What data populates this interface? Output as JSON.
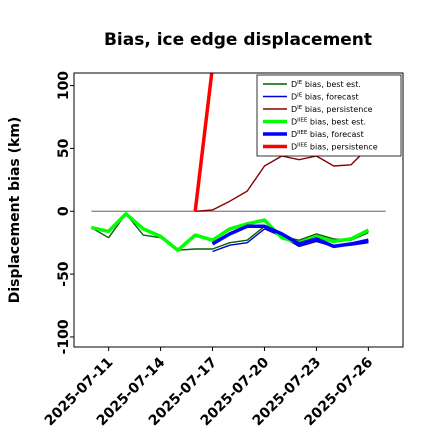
{
  "chart_data": {
    "type": "line",
    "title": "Bias, ice edge displacement",
    "ylabel": "Displacement bias (km)",
    "xlabel": "",
    "xlim": [
      "2025-07-09",
      "2025-07-28"
    ],
    "ylim": [
      -108,
      110
    ],
    "x_ticks": [
      "2025-07-11",
      "2025-07-14",
      "2025-07-17",
      "2025-07-20",
      "2025-07-23",
      "2025-07-26"
    ],
    "x_tick_highlight": "2025-07-17",
    "x_tick_colors": {
      "default": "#000000",
      "highlight": "#228b22"
    },
    "y_ticks": [
      -100,
      -50,
      0,
      50,
      100
    ],
    "grid": false,
    "zero_line": true,
    "legend_position": "top-right",
    "series": [
      {
        "name": "D^IE bias, best est.",
        "legend_main": "D",
        "legend_sup": "IE",
        "legend_rest": " bias, best est.",
        "color": "#006400",
        "width": 1.4,
        "x": [
          "2025-07-10",
          "2025-07-11",
          "2025-07-12",
          "2025-07-13",
          "2025-07-14",
          "2025-07-15",
          "2025-07-16",
          "2025-07-17",
          "2025-07-18",
          "2025-07-19",
          "2025-07-20",
          "2025-07-21",
          "2025-07-22",
          "2025-07-23",
          "2025-07-24",
          "2025-07-25",
          "2025-07-26"
        ],
        "y": [
          -13,
          -21,
          -2,
          -19,
          -21,
          -31,
          -30,
          -30,
          -25,
          -23,
          -12,
          -20,
          -23,
          -18,
          -22,
          -23,
          -17
        ]
      },
      {
        "name": "D^IE bias, forecast",
        "legend_main": "D",
        "legend_sup": "IE",
        "legend_rest": " bias, forecast",
        "color": "#0000cd",
        "width": 1.4,
        "x": [
          "2025-07-17",
          "2025-07-18",
          "2025-07-19",
          "2025-07-20",
          "2025-07-21",
          "2025-07-22",
          "2025-07-23",
          "2025-07-24",
          "2025-07-25",
          "2025-07-26"
        ],
        "y": [
          -32,
          -27,
          -25,
          -14,
          -20,
          -28,
          -24,
          -28,
          -27,
          -25
        ]
      },
      {
        "name": "D^IE bias, persistence",
        "legend_main": "D",
        "legend_sup": "IE",
        "legend_rest": " bias, persistence",
        "color": "#8b0000",
        "width": 1.4,
        "x": [
          "2025-07-16",
          "2025-07-17",
          "2025-07-18",
          "2025-07-19",
          "2025-07-20",
          "2025-07-21",
          "2025-07-22",
          "2025-07-23",
          "2025-07-24",
          "2025-07-25",
          "2025-07-26"
        ],
        "y": [
          0,
          1,
          8,
          16,
          36,
          44,
          41,
          44,
          36,
          37,
          51
        ]
      },
      {
        "name": "D^IIEE bias, best est.",
        "legend_main": "D",
        "legend_sup": "IIEE",
        "legend_rest": " bias, best est.",
        "color": "#00ff00",
        "width": 3.5,
        "x": [
          "2025-07-10",
          "2025-07-11",
          "2025-07-12",
          "2025-07-13",
          "2025-07-14",
          "2025-07-15",
          "2025-07-16",
          "2025-07-17",
          "2025-07-18",
          "2025-07-19",
          "2025-07-20",
          "2025-07-21",
          "2025-07-22",
          "2025-07-23",
          "2025-07-24",
          "2025-07-25",
          "2025-07-26"
        ],
        "y": [
          -13,
          -16,
          -2,
          -14,
          -20,
          -31,
          -19,
          -23,
          -14,
          -10,
          -7,
          -21,
          -25,
          -20,
          -24,
          -22,
          -15
        ]
      },
      {
        "name": "D^IIEE bias, forecast",
        "legend_main": "D",
        "legend_sup": "IIEE",
        "legend_rest": " bias, forecast",
        "color": "#0000ff",
        "width": 3.5,
        "x": [
          "2025-07-17",
          "2025-07-18",
          "2025-07-19",
          "2025-07-20",
          "2025-07-21",
          "2025-07-22",
          "2025-07-23",
          "2025-07-24",
          "2025-07-25",
          "2025-07-26"
        ],
        "y": [
          -26,
          -18,
          -12,
          -12,
          -18,
          -26,
          -22,
          -28,
          -26,
          -23
        ]
      },
      {
        "name": "D^IIEE bias, persistence",
        "legend_main": "D",
        "legend_sup": "IIEE",
        "legend_rest": " bias, persistence",
        "color": "#ff0000",
        "width": 3.5,
        "x": [
          "2025-07-16",
          "2025-07-17"
        ],
        "y": [
          0,
          115
        ]
      }
    ]
  }
}
